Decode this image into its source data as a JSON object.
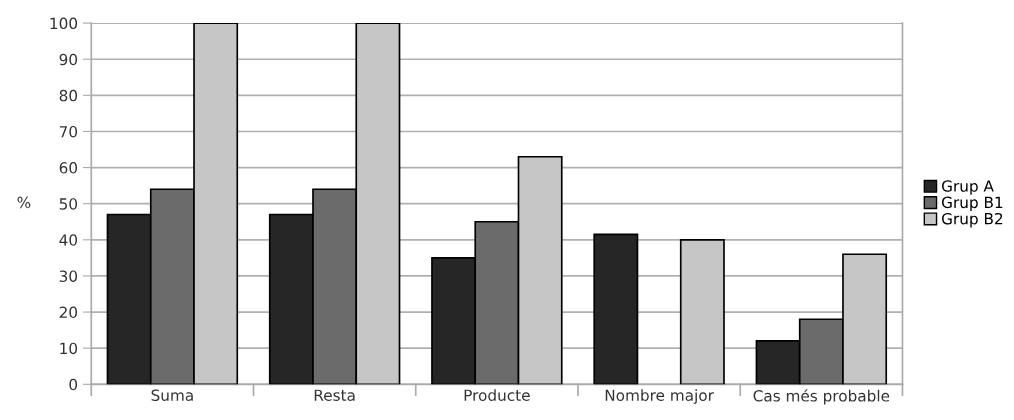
{
  "chart_data": {
    "type": "bar",
    "ylabel": "%",
    "categories": [
      "Suma",
      "Resta",
      "Producte",
      "Nombre major",
      "Cas més probable"
    ],
    "series": [
      {
        "name": "Grup A",
        "color": "#262626",
        "values": [
          47,
          47,
          35,
          41.5,
          12
        ]
      },
      {
        "name": "Grup B1",
        "color": "#6b6b6b",
        "values": [
          54,
          54,
          45,
          null,
          18
        ]
      },
      {
        "name": "Grup B2",
        "color": "#c6c6c6",
        "values": [
          100,
          100,
          63,
          40,
          36
        ]
      }
    ],
    "ylim": [
      0,
      100
    ],
    "yticks": [
      0,
      10,
      20,
      30,
      40,
      50,
      60,
      70,
      80,
      90,
      100
    ],
    "grid": "y",
    "legend": "right"
  }
}
